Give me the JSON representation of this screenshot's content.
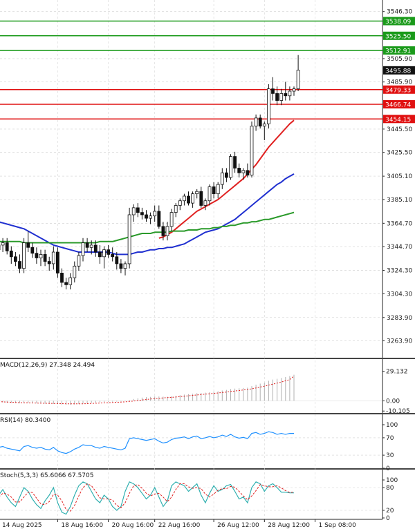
{
  "chart_data": {
    "type": "candlestick",
    "price_axis": {
      "ticks": [
        "3546.30",
        "3505.90",
        "3485.90",
        "3445.50",
        "3425.50",
        "3405.10",
        "3385.10",
        "3364.70",
        "3344.70",
        "3324.30",
        "3304.30",
        "3283.90",
        "3263.90"
      ],
      "ylim": [
        3250,
        3555
      ]
    },
    "current_price": {
      "value": 3495.88,
      "label": "3495.88",
      "color": "#111111"
    },
    "resistance_levels": [
      {
        "value": 3538.09,
        "label": "3538.09",
        "color": "#1a9a1a"
      },
      {
        "value": 3525.5,
        "label": "3525.50",
        "color": "#1a9a1a"
      },
      {
        "value": 3512.91,
        "label": "3512.91",
        "color": "#1a9a1a"
      }
    ],
    "support_levels": [
      {
        "value": 3479.33,
        "label": "3479.33",
        "color": "#e01010"
      },
      {
        "value": 3466.74,
        "label": "3466.74",
        "color": "#e01010"
      },
      {
        "value": 3454.15,
        "label": "3454.15",
        "color": "#e01010"
      }
    ],
    "x_axis": {
      "labels": [
        "14 Aug 2025",
        "18 Aug 16:00",
        "20 Aug 16:00",
        "22 Aug 16:00",
        "26 Aug 12:00",
        "28 Aug 12:00",
        "1 Sep 08:00"
      ],
      "label_bar_index": [
        0,
        14,
        26,
        37,
        51,
        63,
        75
      ]
    },
    "candles": [
      {
        "o": 3342,
        "h": 3350,
        "l": 3335,
        "c": 3346
      },
      {
        "o": 3346,
        "h": 3352,
        "l": 3340,
        "c": 3348
      },
      {
        "o": 3348,
        "h": 3352,
        "l": 3338,
        "c": 3341
      },
      {
        "o": 3341,
        "h": 3345,
        "l": 3330,
        "c": 3336
      },
      {
        "o": 3336,
        "h": 3340,
        "l": 3328,
        "c": 3332
      },
      {
        "o": 3332,
        "h": 3338,
        "l": 3322,
        "c": 3326
      },
      {
        "o": 3326,
        "h": 3352,
        "l": 3322,
        "c": 3348
      },
      {
        "o": 3348,
        "h": 3358,
        "l": 3340,
        "c": 3344
      },
      {
        "o": 3344,
        "h": 3348,
        "l": 3335,
        "c": 3339
      },
      {
        "o": 3339,
        "h": 3344,
        "l": 3330,
        "c": 3335
      },
      {
        "o": 3335,
        "h": 3342,
        "l": 3328,
        "c": 3338
      },
      {
        "o": 3338,
        "h": 3342,
        "l": 3328,
        "c": 3332
      },
      {
        "o": 3332,
        "h": 3336,
        "l": 3324,
        "c": 3330
      },
      {
        "o": 3330,
        "h": 3345,
        "l": 3325,
        "c": 3340
      },
      {
        "o": 3340,
        "h": 3344,
        "l": 3318,
        "c": 3322
      },
      {
        "o": 3322,
        "h": 3326,
        "l": 3310,
        "c": 3314
      },
      {
        "o": 3314,
        "h": 3318,
        "l": 3308,
        "c": 3312
      },
      {
        "o": 3312,
        "h": 3322,
        "l": 3308,
        "c": 3318
      },
      {
        "o": 3318,
        "h": 3332,
        "l": 3314,
        "c": 3328
      },
      {
        "o": 3328,
        "h": 3340,
        "l": 3324,
        "c": 3337
      },
      {
        "o": 3337,
        "h": 3352,
        "l": 3332,
        "c": 3348
      },
      {
        "o": 3348,
        "h": 3352,
        "l": 3340,
        "c": 3344
      },
      {
        "o": 3344,
        "h": 3350,
        "l": 3338,
        "c": 3346
      },
      {
        "o": 3346,
        "h": 3350,
        "l": 3336,
        "c": 3340
      },
      {
        "o": 3340,
        "h": 3346,
        "l": 3330,
        "c": 3336
      },
      {
        "o": 3336,
        "h": 3345,
        "l": 3326,
        "c": 3342
      },
      {
        "o": 3342,
        "h": 3346,
        "l": 3335,
        "c": 3338
      },
      {
        "o": 3338,
        "h": 3344,
        "l": 3332,
        "c": 3336
      },
      {
        "o": 3336,
        "h": 3340,
        "l": 3325,
        "c": 3330
      },
      {
        "o": 3330,
        "h": 3334,
        "l": 3322,
        "c": 3326
      },
      {
        "o": 3326,
        "h": 3332,
        "l": 3320,
        "c": 3330
      },
      {
        "o": 3330,
        "h": 3378,
        "l": 3326,
        "c": 3372
      },
      {
        "o": 3372,
        "h": 3381,
        "l": 3366,
        "c": 3378
      },
      {
        "o": 3378,
        "h": 3382,
        "l": 3370,
        "c": 3374
      },
      {
        "o": 3374,
        "h": 3378,
        "l": 3368,
        "c": 3372
      },
      {
        "o": 3372,
        "h": 3376,
        "l": 3366,
        "c": 3369
      },
      {
        "o": 3369,
        "h": 3374,
        "l": 3364,
        "c": 3371
      },
      {
        "o": 3371,
        "h": 3380,
        "l": 3366,
        "c": 3375
      },
      {
        "o": 3375,
        "h": 3380,
        "l": 3360,
        "c": 3362
      },
      {
        "o": 3362,
        "h": 3366,
        "l": 3350,
        "c": 3354
      },
      {
        "o": 3354,
        "h": 3366,
        "l": 3350,
        "c": 3362
      },
      {
        "o": 3362,
        "h": 3377,
        "l": 3358,
        "c": 3374
      },
      {
        "o": 3374,
        "h": 3382,
        "l": 3370,
        "c": 3380
      },
      {
        "o": 3380,
        "h": 3386,
        "l": 3376,
        "c": 3384
      },
      {
        "o": 3384,
        "h": 3390,
        "l": 3380,
        "c": 3388
      },
      {
        "o": 3388,
        "h": 3392,
        "l": 3380,
        "c": 3382
      },
      {
        "o": 3382,
        "h": 3392,
        "l": 3378,
        "c": 3390
      },
      {
        "o": 3390,
        "h": 3394,
        "l": 3386,
        "c": 3392
      },
      {
        "o": 3392,
        "h": 3396,
        "l": 3378,
        "c": 3380
      },
      {
        "o": 3380,
        "h": 3386,
        "l": 3376,
        "c": 3384
      },
      {
        "o": 3384,
        "h": 3398,
        "l": 3380,
        "c": 3396
      },
      {
        "o": 3396,
        "h": 3400,
        "l": 3386,
        "c": 3390
      },
      {
        "o": 3390,
        "h": 3400,
        "l": 3386,
        "c": 3398
      },
      {
        "o": 3398,
        "h": 3412,
        "l": 3394,
        "c": 3408
      },
      {
        "o": 3408,
        "h": 3412,
        "l": 3400,
        "c": 3404
      },
      {
        "o": 3404,
        "h": 3424,
        "l": 3402,
        "c": 3422
      },
      {
        "o": 3422,
        "h": 3426,
        "l": 3408,
        "c": 3412
      },
      {
        "o": 3412,
        "h": 3416,
        "l": 3404,
        "c": 3408
      },
      {
        "o": 3408,
        "h": 3412,
        "l": 3402,
        "c": 3410
      },
      {
        "o": 3410,
        "h": 3416,
        "l": 3404,
        "c": 3406
      },
      {
        "o": 3406,
        "h": 3452,
        "l": 3404,
        "c": 3448
      },
      {
        "o": 3448,
        "h": 3458,
        "l": 3444,
        "c": 3455
      },
      {
        "o": 3455,
        "h": 3458,
        "l": 3446,
        "c": 3448
      },
      {
        "o": 3448,
        "h": 3452,
        "l": 3436,
        "c": 3450
      },
      {
        "o": 3450,
        "h": 3484,
        "l": 3446,
        "c": 3480
      },
      {
        "o": 3480,
        "h": 3490,
        "l": 3470,
        "c": 3476
      },
      {
        "o": 3476,
        "h": 3482,
        "l": 3466,
        "c": 3470
      },
      {
        "o": 3470,
        "h": 3480,
        "l": 3466,
        "c": 3476
      },
      {
        "o": 3476,
        "h": 3486,
        "l": 3470,
        "c": 3474
      },
      {
        "o": 3474,
        "h": 3482,
        "l": 3470,
        "c": 3478
      },
      {
        "o": 3478,
        "h": 3482,
        "l": 3474,
        "c": 3480
      },
      {
        "o": 3480,
        "h": 3509,
        "l": 3478,
        "c": 3496
      }
    ],
    "moving_averages": [
      {
        "color": "#e02020",
        "start_index": 38,
        "values": [
          3352,
          3353,
          3355,
          3357,
          3360,
          3363,
          3366,
          3369,
          3372,
          3375,
          3377,
          3379,
          3381,
          3383,
          3385,
          3388,
          3391,
          3394,
          3397,
          3400,
          3403,
          3407,
          3411,
          3415,
          3420,
          3425,
          3430,
          3434,
          3438,
          3442,
          3446,
          3450,
          3453
        ]
      },
      {
        "color": "#2030d0",
        "start_index": 0,
        "values": [
          3366,
          3365,
          3364,
          3363,
          3362,
          3361,
          3360,
          3358,
          3356,
          3354,
          3352,
          3350,
          3348,
          3346,
          3345,
          3344,
          3343,
          3342,
          3341,
          3340,
          3340,
          3340,
          3340,
          3340,
          3340,
          3340,
          3340,
          3339,
          3338,
          3338,
          3338,
          3338,
          3339,
          3340,
          3340,
          3341,
          3342,
          3342,
          3343,
          3343,
          3344,
          3344,
          3345,
          3346,
          3347,
          3349,
          3351,
          3353,
          3355,
          3357,
          3358,
          3359,
          3360,
          3362,
          3364,
          3366,
          3368,
          3371,
          3374,
          3377,
          3380,
          3383,
          3386,
          3389,
          3392,
          3395,
          3398,
          3400,
          3403,
          3405,
          3407
        ]
      },
      {
        "color": "#2a9a2a",
        "start_index": 0,
        "values": [
          3349,
          3349,
          3349,
          3349,
          3349,
          3349,
          3348,
          3348,
          3348,
          3348,
          3348,
          3348,
          3348,
          3348,
          3348,
          3348,
          3348,
          3348,
          3348,
          3348,
          3348,
          3348,
          3348,
          3348,
          3349,
          3349,
          3349,
          3349,
          3350,
          3351,
          3352,
          3353,
          3354,
          3355,
          3356,
          3356,
          3356,
          3357,
          3357,
          3357,
          3357,
          3358,
          3358,
          3358,
          3358,
          3359,
          3359,
          3359,
          3360,
          3360,
          3360,
          3361,
          3361,
          3362,
          3362,
          3363,
          3363,
          3364,
          3365,
          3365,
          3366,
          3366,
          3367,
          3368,
          3368,
          3369,
          3370,
          3371,
          3372,
          3373,
          3374
        ]
      }
    ],
    "indicators": [
      {
        "name": "macd",
        "label": "MACD(12,26,9) 27.348 24.494",
        "ticks": [
          "29.132",
          "0.00",
          "-10.105"
        ],
        "ylim": [
          -12,
          31
        ],
        "histogram_color": "#b0b0b0",
        "signal_color": "#e02020",
        "histogram": [
          -1.2,
          -1.5,
          -1.8,
          -2,
          -2.2,
          -2.3,
          -2.2,
          -2.1,
          -2.3,
          -2.5,
          -2.7,
          -2.9,
          -3,
          -3.1,
          -3.3,
          -3.6,
          -3.8,
          -3.8,
          -3.6,
          -3.2,
          -2.8,
          -2.4,
          -2,
          -1.7,
          -1.4,
          -1.2,
          -1,
          -0.9,
          -0.8,
          -0.6,
          -0.3,
          0.8,
          1.8,
          2.6,
          3.2,
          3.6,
          3.9,
          4.3,
          4.3,
          4.1,
          4.1,
          4.5,
          5,
          5.6,
          6.2,
          6.6,
          7.1,
          7.6,
          7.8,
          8.1,
          8.6,
          9,
          9.5,
          10.2,
          10.8,
          11.6,
          12.1,
          12.4,
          12.7,
          13,
          14.5,
          16,
          17,
          18,
          19.8,
          21,
          21.8,
          22.6,
          23.5,
          24.5,
          25.8
        ],
        "signal": [
          -0.8,
          -1,
          -1.2,
          -1.4,
          -1.6,
          -1.8,
          -1.9,
          -2,
          -2.1,
          -2.2,
          -2.3,
          -2.4,
          -2.5,
          -2.6,
          -2.7,
          -2.8,
          -2.9,
          -3,
          -3,
          -3,
          -2.9,
          -2.8,
          -2.6,
          -2.4,
          -2.2,
          -2,
          -1.8,
          -1.6,
          -1.4,
          -1.2,
          -1,
          -0.6,
          -0.2,
          0.3,
          0.8,
          1.3,
          1.8,
          2.2,
          2.6,
          2.9,
          3.2,
          3.5,
          3.8,
          4.2,
          4.6,
          5,
          5.4,
          5.8,
          6.2,
          6.6,
          7,
          7.4,
          7.8,
          8.2,
          8.7,
          9.2,
          9.7,
          10.2,
          10.7,
          11.2,
          11.9,
          12.7,
          13.6,
          14.5,
          15.5,
          16.5,
          17.5,
          18.6,
          19.8,
          21,
          24.5
        ]
      },
      {
        "name": "rsi",
        "label": "RSI(14) 80.3400",
        "ticks": [
          "100",
          "70",
          "30",
          "0"
        ],
        "ylim": [
          0,
          100
        ],
        "color": "#1e90ff",
        "values": [
          48,
          50,
          46,
          44,
          42,
          40,
          50,
          52,
          48,
          46,
          48,
          44,
          42,
          48,
          40,
          36,
          34,
          38,
          44,
          48,
          54,
          52,
          52,
          48,
          46,
          50,
          48,
          46,
          44,
          42,
          46,
          68,
          70,
          68,
          66,
          64,
          66,
          68,
          62,
          58,
          60,
          66,
          69,
          70,
          72,
          68,
          72,
          74,
          68,
          70,
          73,
          70,
          72,
          76,
          73,
          78,
          72,
          69,
          71,
          68,
          80,
          82,
          78,
          80,
          84,
          82,
          78,
          80,
          78,
          80,
          80
        ]
      },
      {
        "name": "stoch",
        "label": "Stoch(5,3,3) 65.6066 67.5705",
        "ticks": [
          "100",
          "80",
          "20",
          "0"
        ],
        "ylim": [
          0,
          100
        ],
        "k_color": "#30b0b0",
        "d_color": "#e02020",
        "k": [
          60,
          75,
          55,
          40,
          30,
          55,
          80,
          70,
          50,
          35,
          25,
          45,
          60,
          80,
          40,
          15,
          10,
          30,
          60,
          85,
          95,
          90,
          70,
          50,
          40,
          60,
          50,
          30,
          20,
          30,
          70,
          95,
          90,
          80,
          65,
          50,
          60,
          80,
          55,
          30,
          45,
          85,
          95,
          90,
          85,
          70,
          80,
          90,
          60,
          40,
          65,
          85,
          70,
          75,
          85,
          88,
          70,
          50,
          55,
          40,
          80,
          95,
          90,
          70,
          85,
          90,
          80,
          68,
          68,
          66,
          66
        ],
        "d": [
          55,
          65,
          63,
          55,
          42,
          42,
          55,
          68,
          67,
          52,
          37,
          35,
          43,
          62,
          60,
          45,
          22,
          18,
          33,
          58,
          80,
          90,
          85,
          70,
          53,
          50,
          50,
          47,
          33,
          27,
          40,
          65,
          85,
          88,
          78,
          65,
          58,
          63,
          65,
          55,
          43,
          55,
          75,
          90,
          90,
          82,
          78,
          80,
          77,
          63,
          55,
          63,
          73,
          77,
          77,
          83,
          81,
          70,
          58,
          48,
          58,
          72,
          88,
          85,
          82,
          82,
          85,
          79,
          72,
          67,
          68
        ]
      }
    ]
  }
}
